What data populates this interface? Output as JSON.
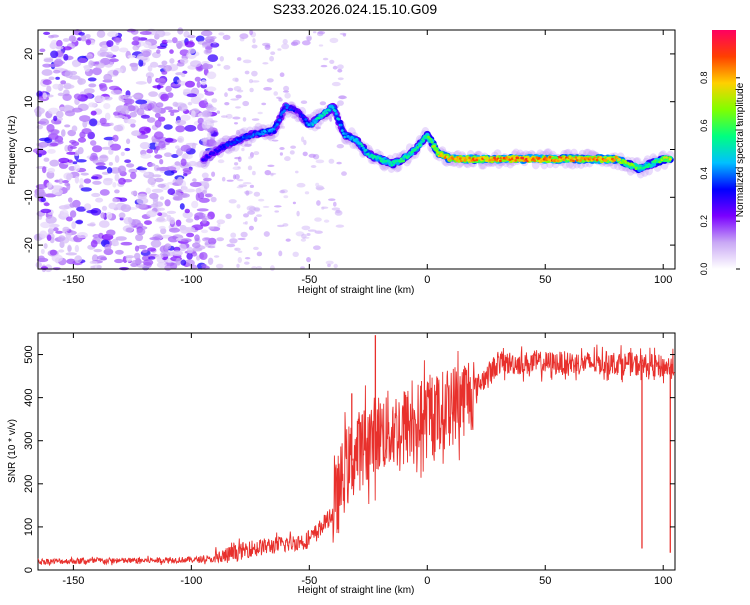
{
  "title": "S233.2026.024.15.10.G09",
  "chart_data": [
    {
      "type": "heatmap",
      "xlabel": "Height of straight line (km)",
      "ylabel": "Frequency (Hz)",
      "xlim": [
        -165,
        105
      ],
      "ylim": [
        -25,
        25
      ],
      "xticks": [
        -150,
        -100,
        -50,
        0,
        50,
        100
      ],
      "yticks": [
        -20,
        -10,
        0,
        10,
        20
      ],
      "colorbar": {
        "label": "Normalized spectral amplitude",
        "range": [
          0,
          1
        ],
        "ticks": [
          "0.0",
          "0.2",
          "0.4",
          "0.6",
          "0.8"
        ],
        "tick_values": [
          0.0,
          0.2,
          0.4,
          0.6,
          0.8
        ],
        "colormap": [
          "#ffffff",
          "#c9a8f5",
          "#7a00ff",
          "#0000ff",
          "#00c0ff",
          "#00ff80",
          "#80ff00",
          "#ffd000",
          "#ff4000",
          "#ff0060"
        ]
      },
      "ridge": {
        "x": [
          -95,
          -85,
          -75,
          -65,
          -60,
          -55,
          -50,
          -45,
          -40,
          -35,
          -30,
          -25,
          -20,
          -15,
          -10,
          -5,
          0,
          5,
          10,
          20,
          30,
          40,
          50,
          60,
          70,
          80,
          85,
          90,
          95,
          100,
          103
        ],
        "freq": [
          -2,
          1,
          3,
          4,
          9,
          8,
          5,
          7,
          9,
          3,
          2,
          -1,
          -2,
          -3,
          -2,
          0,
          3,
          -1,
          -2,
          -2,
          -2,
          -2,
          -2,
          -2,
          -2,
          -2,
          -3,
          -4,
          -3,
          -2,
          -2
        ],
        "amplitude": [
          0.3,
          0.35,
          0.4,
          0.45,
          0.4,
          0.3,
          0.45,
          0.55,
          0.5,
          0.45,
          0.5,
          0.5,
          0.55,
          0.55,
          0.6,
          0.55,
          0.6,
          0.8,
          0.85,
          0.85,
          0.9,
          0.9,
          0.9,
          0.85,
          0.85,
          0.85,
          0.7,
          0.6,
          0.55,
          0.7,
          0.75
        ]
      }
    },
    {
      "type": "line",
      "xlabel": "Height of straight line (km)",
      "ylabel": "SNR (10 * v/v)",
      "xlim": [
        -165,
        105
      ],
      "ylim": [
        0,
        550
      ],
      "xticks": [
        -150,
        -100,
        -50,
        0,
        50,
        100
      ],
      "yticks": [
        0,
        100,
        200,
        300,
        400,
        500
      ],
      "color": "#e8302c",
      "trend": {
        "x": [
          -165,
          -120,
          -90,
          -75,
          -60,
          -50,
          -40,
          -35,
          -30,
          -25,
          -20,
          -10,
          0,
          10,
          20,
          30,
          50,
          80,
          105
        ],
        "y": [
          20,
          22,
          25,
          50,
          60,
          70,
          130,
          230,
          270,
          300,
          320,
          330,
          350,
          380,
          420,
          480,
          480,
          480,
          470
        ]
      },
      "spikes": [
        {
          "x": -22,
          "y": 545
        },
        {
          "x": -32,
          "y": 410
        },
        {
          "x": 91,
          "y": 50
        },
        {
          "x": 103,
          "y": 40
        }
      ]
    }
  ]
}
